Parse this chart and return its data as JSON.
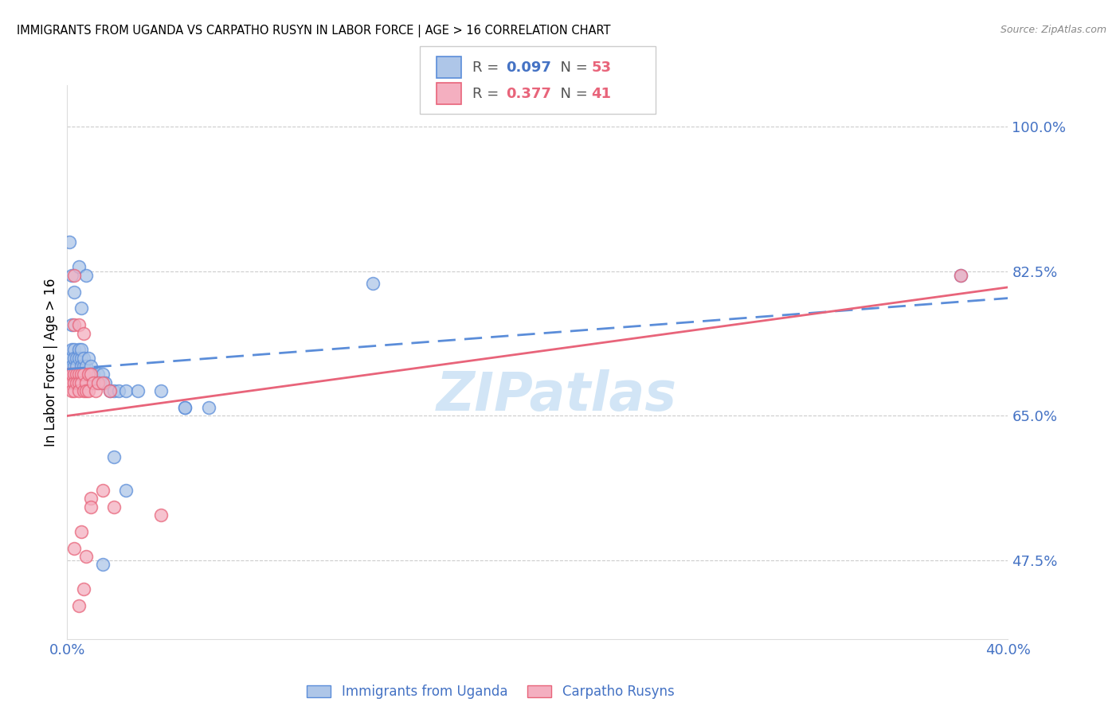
{
  "title": "IMMIGRANTS FROM UGANDA VS CARPATHO RUSYN IN LABOR FORCE | AGE > 16 CORRELATION CHART",
  "source": "Source: ZipAtlas.com",
  "ylabel": "In Labor Force | Age > 16",
  "xlim": [
    0.0,
    0.4
  ],
  "ylim": [
    0.38,
    1.05
  ],
  "yticks": [
    0.475,
    0.65,
    0.825,
    1.0
  ],
  "ytick_labels": [
    "47.5%",
    "65.0%",
    "82.5%",
    "100.0%"
  ],
  "xticks": [
    0.0,
    0.05,
    0.1,
    0.15,
    0.2,
    0.25,
    0.3,
    0.35,
    0.4
  ],
  "xtick_labels": [
    "0.0%",
    "",
    "",
    "",
    "",
    "",
    "",
    "",
    "40.0%"
  ],
  "uganda_color": "#aec6e8",
  "rusyn_color": "#f4afc0",
  "uganda_edge_color": "#5b8dd9",
  "rusyn_edge_color": "#e8647a",
  "uganda_line_color": "#5b8dd9",
  "rusyn_line_color": "#e8647a",
  "legend_uganda_r": "0.097",
  "legend_uganda_n": "53",
  "legend_rusyn_r": "0.377",
  "legend_rusyn_n": "41",
  "tick_color": "#4472c4",
  "watermark_color": "#cde3f5",
  "uganda_x": [
    0.001,
    0.001,
    0.002,
    0.002,
    0.002,
    0.003,
    0.003,
    0.003,
    0.003,
    0.004,
    0.004,
    0.004,
    0.005,
    0.005,
    0.005,
    0.006,
    0.006,
    0.006,
    0.007,
    0.007,
    0.007,
    0.008,
    0.008,
    0.009,
    0.009,
    0.01,
    0.01,
    0.011,
    0.012,
    0.013,
    0.014,
    0.015,
    0.016,
    0.018,
    0.02,
    0.022,
    0.025,
    0.03,
    0.04,
    0.05,
    0.06,
    0.13,
    0.002,
    0.005,
    0.008,
    0.001,
    0.003,
    0.006,
    0.02,
    0.05,
    0.015,
    0.025,
    0.38
  ],
  "uganda_y": [
    0.72,
    0.7,
    0.73,
    0.71,
    0.76,
    0.71,
    0.73,
    0.7,
    0.72,
    0.7,
    0.72,
    0.71,
    0.73,
    0.7,
    0.72,
    0.72,
    0.71,
    0.73,
    0.71,
    0.7,
    0.72,
    0.7,
    0.71,
    0.72,
    0.7,
    0.71,
    0.7,
    0.7,
    0.69,
    0.7,
    0.69,
    0.7,
    0.69,
    0.68,
    0.68,
    0.68,
    0.68,
    0.68,
    0.68,
    0.66,
    0.66,
    0.81,
    0.82,
    0.83,
    0.82,
    0.86,
    0.8,
    0.78,
    0.6,
    0.66,
    0.47,
    0.56,
    0.82
  ],
  "rusyn_x": [
    0.001,
    0.001,
    0.002,
    0.002,
    0.003,
    0.003,
    0.003,
    0.004,
    0.004,
    0.005,
    0.005,
    0.005,
    0.006,
    0.006,
    0.007,
    0.007,
    0.008,
    0.008,
    0.009,
    0.009,
    0.01,
    0.011,
    0.012,
    0.013,
    0.015,
    0.018,
    0.003,
    0.005,
    0.007,
    0.01,
    0.02,
    0.04,
    0.38,
    0.003,
    0.006,
    0.008,
    0.01,
    0.015,
    0.005,
    0.007,
    0.003
  ],
  "rusyn_y": [
    0.7,
    0.69,
    0.7,
    0.68,
    0.7,
    0.69,
    0.68,
    0.7,
    0.69,
    0.7,
    0.69,
    0.68,
    0.7,
    0.69,
    0.7,
    0.68,
    0.69,
    0.68,
    0.7,
    0.68,
    0.7,
    0.69,
    0.68,
    0.69,
    0.69,
    0.68,
    0.76,
    0.76,
    0.75,
    0.55,
    0.54,
    0.53,
    0.82,
    0.49,
    0.51,
    0.48,
    0.54,
    0.56,
    0.42,
    0.44,
    0.82
  ]
}
